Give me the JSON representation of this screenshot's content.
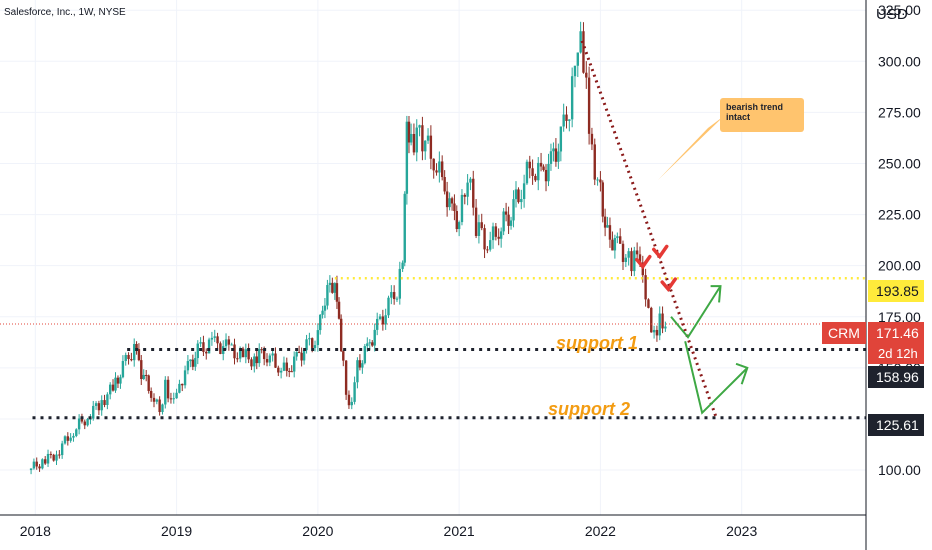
{
  "header": {
    "title": "Salesforce, Inc., 1W, NYSE",
    "currency": "USD"
  },
  "chart_data": {
    "type": "candlestick",
    "symbol": "CRM",
    "x_ticks": [
      "2018",
      "2019",
      "2020",
      "2021",
      "2022",
      "2023"
    ],
    "y_ticks": [
      "100.00",
      "125.00",
      "150.00",
      "175.00",
      "200.00",
      "225.00",
      "250.00",
      "275.00",
      "300.00",
      "325.00"
    ],
    "ylim": [
      78,
      330
    ],
    "grid": true,
    "series": [
      {
        "name": "CRM",
        "points": [
          [
            2017.95,
            100
          ],
          [
            2018.05,
            104
          ],
          [
            2018.15,
            108
          ],
          [
            2018.25,
            118
          ],
          [
            2018.35,
            125
          ],
          [
            2018.45,
            132
          ],
          [
            2018.55,
            140
          ],
          [
            2018.62,
            150
          ],
          [
            2018.7,
            160
          ],
          [
            2018.75,
            148
          ],
          [
            2018.82,
            138
          ],
          [
            2018.88,
            128
          ],
          [
            2018.92,
            142
          ],
          [
            2018.96,
            135
          ],
          [
            2019.0,
            140
          ],
          [
            2019.08,
            150
          ],
          [
            2019.15,
            158
          ],
          [
            2019.25,
            162
          ],
          [
            2019.35,
            160
          ],
          [
            2019.45,
            156
          ],
          [
            2019.55,
            154
          ],
          [
            2019.62,
            158
          ],
          [
            2019.7,
            152
          ],
          [
            2019.78,
            148
          ],
          [
            2019.85,
            155
          ],
          [
            2019.92,
            160
          ],
          [
            2020.0,
            165
          ],
          [
            2020.05,
            185
          ],
          [
            2020.12,
            193
          ],
          [
            2020.15,
            170
          ],
          [
            2020.18,
            150
          ],
          [
            2020.22,
            130
          ],
          [
            2020.28,
            150
          ],
          [
            2020.35,
            160
          ],
          [
            2020.42,
            170
          ],
          [
            2020.5,
            180
          ],
          [
            2020.56,
            188
          ],
          [
            2020.6,
            200
          ],
          [
            2020.63,
            265
          ],
          [
            2020.66,
            258
          ],
          [
            2020.72,
            265
          ],
          [
            2020.8,
            255
          ],
          [
            2020.88,
            242
          ],
          [
            2020.95,
            226
          ],
          [
            2021.0,
            222
          ],
          [
            2021.06,
            245
          ],
          [
            2021.12,
            220
          ],
          [
            2021.2,
            210
          ],
          [
            2021.28,
            218
          ],
          [
            2021.35,
            225
          ],
          [
            2021.42,
            235
          ],
          [
            2021.5,
            248
          ],
          [
            2021.58,
            245
          ],
          [
            2021.65,
            250
          ],
          [
            2021.72,
            262
          ],
          [
            2021.78,
            278
          ],
          [
            2021.82,
            295
          ],
          [
            2021.86,
            308
          ],
          [
            2021.9,
            285
          ],
          [
            2021.94,
            255
          ],
          [
            2022.0,
            235
          ],
          [
            2022.05,
            215
          ],
          [
            2022.12,
            210
          ],
          [
            2022.18,
            205
          ],
          [
            2022.22,
            200
          ],
          [
            2022.26,
            205
          ],
          [
            2022.3,
            192
          ],
          [
            2022.34,
            175
          ],
          [
            2022.38,
            165
          ],
          [
            2022.42,
            175
          ],
          [
            2022.46,
            171.46
          ]
        ]
      }
    ],
    "levels": [
      {
        "label": "193.85",
        "value": 193.85,
        "color": "#ffeb3b"
      },
      {
        "label": "158.96",
        "value": 158.96,
        "color": "#1e222d"
      },
      {
        "label": "125.61",
        "value": 125.61,
        "color": "#1e222d"
      }
    ],
    "last_price": {
      "symbol": "CRM",
      "value": "171.46",
      "countdown": "2d 12h"
    },
    "annotations": {
      "support1": "support 1",
      "support2": "support 2",
      "callout": "bearish trend intact"
    },
    "trendline": {
      "from": [
        2021.87,
        310
      ],
      "to": [
        2022.82,
        125.61
      ],
      "color": "#8b1a1a"
    }
  }
}
